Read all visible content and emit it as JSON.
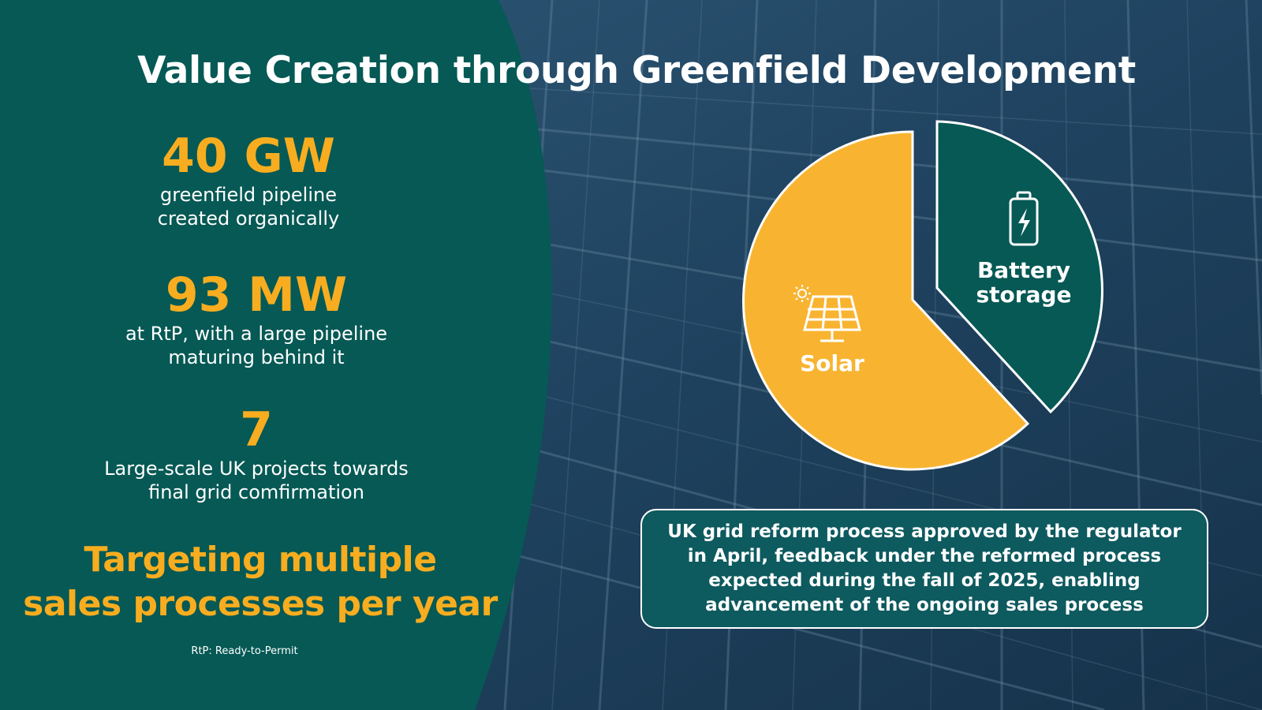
{
  "title": "Value Creation through Greenfield Development",
  "stats": [
    {
      "value": "40 GW",
      "desc_lines": [
        "greenfield pipeline",
        "created organically"
      ]
    },
    {
      "value": "93 MW",
      "desc_lines": [
        "at RtP, with a large pipeline",
        "maturing behind it"
      ]
    },
    {
      "value": "7",
      "desc_lines": [
        "Large-scale UK projects towards",
        "final grid comfirmation"
      ]
    }
  ],
  "target_lines": [
    "Targeting multiple",
    "sales processes per year"
  ],
  "footnote": "RtP: Ready-to-Permit",
  "pie": {
    "solar_label": "Solar",
    "battery_label_lines": [
      "Battery",
      "storage"
    ],
    "solar_icon": "solar-panel-icon",
    "battery_icon": "battery-charging-icon"
  },
  "callout_lines": [
    "UK grid reform process approved by the regulator",
    "in April, feedback under the reformed process",
    "expected during the fall of 2025, enabling",
    "advancement of the ongoing sales process"
  ],
  "colors": {
    "dark_teal": "#065955",
    "accent_yellow": "#f7ad1f",
    "panel_blue": "#1e3f58",
    "callout_teal": "#0d5a5f"
  }
}
